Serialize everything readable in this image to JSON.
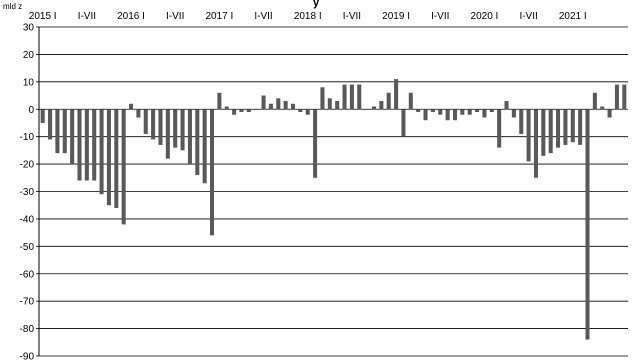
{
  "chart_data": {
    "type": "bar",
    "title_fragment": "y",
    "corner_label": "mld z",
    "ylim": [
      -90,
      30
    ],
    "y_ticks": [
      30,
      20,
      10,
      0,
      -10,
      -20,
      -30,
      -40,
      -50,
      -60,
      -70,
      -80,
      -90
    ],
    "grid": true,
    "x_tick_labels": [
      "2015 I",
      "I-VII",
      "2016 I",
      "I-VII",
      "2017 I",
      "I-VII",
      "2018 I",
      "I-VII",
      "2019 I",
      "I-VII",
      "2020 I",
      "I-VII",
      "2021 I"
    ],
    "series": [
      {
        "values": [
          -5,
          -11,
          -16,
          -16,
          -20,
          -26,
          -26,
          -26,
          -31,
          -35,
          -36,
          -42,
          2,
          -3,
          -9,
          -11,
          -13,
          -18,
          -14,
          -15,
          -20,
          -24,
          -27,
          -46,
          6,
          1,
          -2,
          -1,
          -1,
          0,
          5,
          2,
          4,
          3,
          2,
          -1,
          -2,
          -25,
          8,
          4,
          3,
          9,
          9,
          9,
          0,
          1,
          3,
          6,
          11,
          -10,
          6,
          -1,
          -4,
          -1,
          -2,
          -4,
          -4,
          -2,
          -2,
          -1,
          -3,
          -1,
          -14,
          3,
          -3,
          -9,
          -19,
          -25,
          -17,
          -16,
          -14,
          -13,
          -12,
          -13,
          -84,
          6,
          1,
          -3,
          9,
          9
        ]
      }
    ],
    "colors": {
      "bar": "#595959",
      "grid": "#000000",
      "axis": "#000000"
    }
  }
}
